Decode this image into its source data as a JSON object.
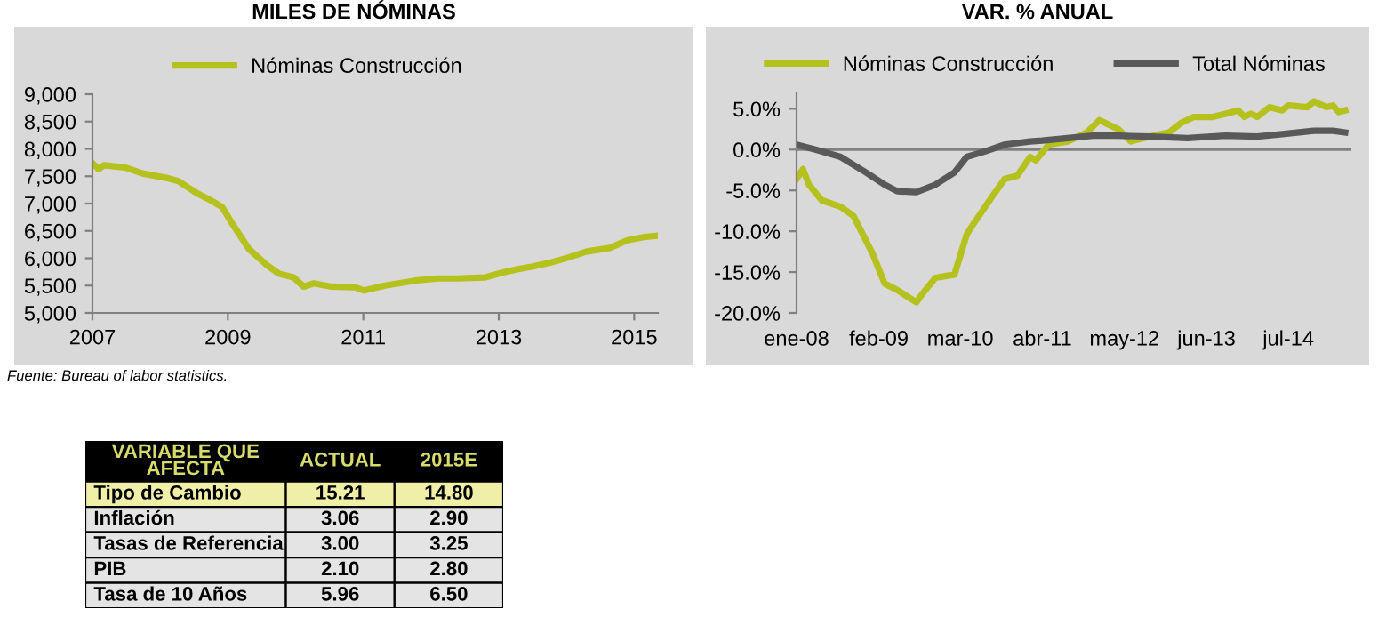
{
  "chart_data": [
    {
      "type": "line",
      "title": "MILES DE NÓMINAS",
      "legend": "top",
      "grid": false,
      "marker": "none",
      "line_style": "solid",
      "xlim": [
        2007,
        2015.35
      ],
      "xticks": [
        2007,
        2009,
        2011,
        2013,
        2015
      ],
      "ylim": [
        5000,
        9000
      ],
      "yticks": [
        {
          "value": 5000,
          "label": "5,000"
        },
        {
          "value": 5500,
          "label": "5,500"
        },
        {
          "value": 6000,
          "label": "6,000"
        },
        {
          "value": 6500,
          "label": "6,500"
        },
        {
          "value": 7000,
          "label": "7,000"
        },
        {
          "value": 7500,
          "label": "7,500"
        },
        {
          "value": 8000,
          "label": "8,000"
        },
        {
          "value": 8500,
          "label": "8,500"
        },
        {
          "value": 9000,
          "label": "9,000"
        }
      ],
      "annotations": [
        "Fuente: Bureau of labor statistics."
      ],
      "series": [
        {
          "name": "Nóminas Construcción",
          "color": "#b5c11c",
          "x": [
            2007.0,
            2007.09,
            2007.17,
            2007.48,
            2007.74,
            2008.09,
            2008.27,
            2008.53,
            2008.79,
            2008.92,
            2009.05,
            2009.31,
            2009.57,
            2009.75,
            2009.97,
            2010.12,
            2010.27,
            2010.53,
            2010.88,
            2011.01,
            2011.32,
            2011.76,
            2012.1,
            2012.37,
            2012.8,
            2013.06,
            2013.24,
            2013.5,
            2013.76,
            2014.02,
            2014.29,
            2014.64,
            2014.9,
            2015.16,
            2015.32
          ],
          "values": [
            7740,
            7630,
            7700,
            7660,
            7550,
            7470,
            7410,
            7200,
            7030,
            6930,
            6660,
            6170,
            5880,
            5720,
            5650,
            5480,
            5540,
            5480,
            5470,
            5410,
            5500,
            5590,
            5630,
            5630,
            5650,
            5740,
            5790,
            5850,
            5920,
            6010,
            6120,
            6190,
            6330,
            6390,
            6410
          ]
        }
      ]
    },
    {
      "type": "line",
      "title": "VAR. % ANUAL",
      "legend": "top",
      "grid": false,
      "marker": "none",
      "line_style": "solid",
      "xlim": [
        "2008-01",
        "2015-05"
      ],
      "xticks": [
        {
          "value": "2008-01",
          "label": "ene-08"
        },
        {
          "value": "2009-02",
          "label": "feb-09"
        },
        {
          "value": "2010-03",
          "label": "mar-10"
        },
        {
          "value": "2011-04",
          "label": "abr-11"
        },
        {
          "value": "2012-05",
          "label": "may-12"
        },
        {
          "value": "2013-06",
          "label": "jun-13"
        },
        {
          "value": "2014-07",
          "label": "jul-14"
        }
      ],
      "ylim": [
        -20,
        7
      ],
      "ref_lines": [
        {
          "axis": "y",
          "value": 0,
          "color": "#808080"
        }
      ],
      "yticks": [
        {
          "value": -20,
          "label": "-20.0%"
        },
        {
          "value": -15,
          "label": "-15.0%"
        },
        {
          "value": -10,
          "label": "-10.0%"
        },
        {
          "value": -5,
          "label": "-5.0%"
        },
        {
          "value": 0,
          "label": "0.0%"
        },
        {
          "value": 5,
          "label": "5.0%"
        }
      ],
      "series": [
        {
          "name": "Nóminas Construcción",
          "color": "#b5c11c",
          "x": [
            "2008-01",
            "2008-02",
            "2008-03",
            "2008-05",
            "2008-08",
            "2008-10",
            "2009-01",
            "2009-03",
            "2009-05",
            "2009-08",
            "2009-09",
            "2009-11",
            "2010-02",
            "2010-04",
            "2010-05",
            "2010-08",
            "2010-10",
            "2010-12",
            "2011-02",
            "2011-03",
            "2011-05",
            "2011-08",
            "2011-11",
            "2012-01",
            "2012-04",
            "2012-06",
            "2012-09",
            "2012-12",
            "2013-02",
            "2013-04",
            "2013-07",
            "2013-09",
            "2013-11",
            "2013-12",
            "2014-01",
            "2014-02",
            "2014-04",
            "2014-06",
            "2014-07",
            "2014-10",
            "2014-11",
            "2015-01",
            "2015-02",
            "2015-03",
            "2015-04"
          ],
          "values": [
            -3.6,
            -2.4,
            -4.3,
            -6.2,
            -7.0,
            -8.1,
            -12.7,
            -16.4,
            -17.2,
            -18.7,
            -17.6,
            -15.7,
            -15.3,
            -10.4,
            -9.2,
            -5.8,
            -3.6,
            -3.2,
            -0.9,
            -1.3,
            0.6,
            1.0,
            2.1,
            3.6,
            2.5,
            1.0,
            1.6,
            2.1,
            3.3,
            4.0,
            4.0,
            4.4,
            4.8,
            4.0,
            4.4,
            4.0,
            5.2,
            4.8,
            5.4,
            5.2,
            5.9,
            5.2,
            5.4,
            4.6,
            4.8
          ]
        },
        {
          "name": "Total Nóminas",
          "color": "#595959",
          "x": [
            "2008-01",
            "2008-04",
            "2008-08",
            "2008-12",
            "2009-03",
            "2009-05",
            "2009-08",
            "2009-11",
            "2010-02",
            "2010-04",
            "2010-07",
            "2010-10",
            "2011-02",
            "2011-04",
            "2011-08",
            "2011-12",
            "2012-04",
            "2012-09",
            "2013-03",
            "2013-09",
            "2014-02",
            "2014-06",
            "2014-11",
            "2015-02",
            "2015-04"
          ],
          "values": [
            0.6,
            0.0,
            -0.9,
            -2.8,
            -4.3,
            -5.1,
            -5.2,
            -4.3,
            -2.8,
            -0.9,
            -0.2,
            0.6,
            1.0,
            1.1,
            1.4,
            1.7,
            1.7,
            1.6,
            1.4,
            1.7,
            1.6,
            1.9,
            2.3,
            2.3,
            2.1
          ]
        }
      ]
    },
    {
      "type": "other",
      "annotations": [
        "VARIABLE QUE\nAFECTA",
        "ACTUAL",
        "2015E",
        "Tipo de Cambio",
        "15.21",
        "14.80",
        "Inflación",
        "3.06",
        "2.90",
        "Tasas de Referencia",
        "3.00",
        "3.25",
        "PIB",
        "2.10",
        "2.80",
        "Tasa de 10 Años",
        "5.96",
        "6.50"
      ]
    }
  ]
}
